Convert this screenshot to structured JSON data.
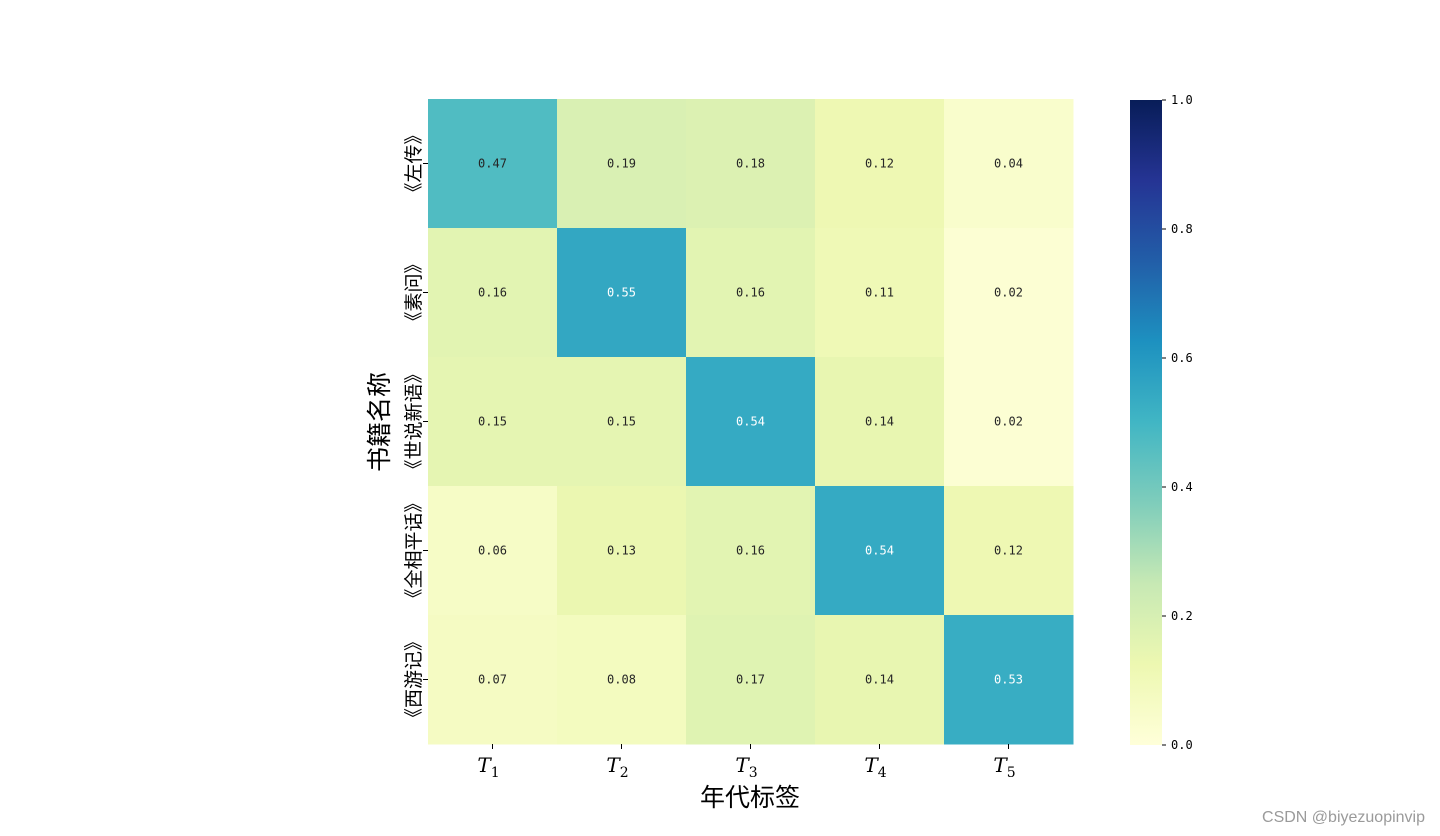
{
  "chart_data": {
    "type": "heatmap",
    "title": "",
    "xlabel": "年代标签",
    "ylabel": "书籍名称",
    "x_categories": [
      {
        "base": "T",
        "sub": "1"
      },
      {
        "base": "T",
        "sub": "2"
      },
      {
        "base": "T",
        "sub": "3"
      },
      {
        "base": "T",
        "sub": "4"
      },
      {
        "base": "T",
        "sub": "5"
      }
    ],
    "y_categories": [
      "《左传》",
      "《素问》",
      "《世说新语》",
      "《全相平话》",
      "《西游记》"
    ],
    "values": [
      [
        0.47,
        0.19,
        0.18,
        0.12,
        0.04
      ],
      [
        0.16,
        0.55,
        0.16,
        0.11,
        0.02
      ],
      [
        0.15,
        0.15,
        0.54,
        0.14,
        0.02
      ],
      [
        0.06,
        0.13,
        0.16,
        0.54,
        0.12
      ],
      [
        0.07,
        0.08,
        0.17,
        0.14,
        0.53
      ]
    ],
    "colormap": "YlGnBu",
    "vmin": 0.0,
    "vmax": 1.0,
    "colorbar_ticks": [
      "0.0",
      "0.2",
      "0.4",
      "0.6",
      "0.8",
      "1.0"
    ],
    "annotations": true,
    "annotation_format": "0.00"
  },
  "watermark": "CSDN @biyezuopinvip"
}
